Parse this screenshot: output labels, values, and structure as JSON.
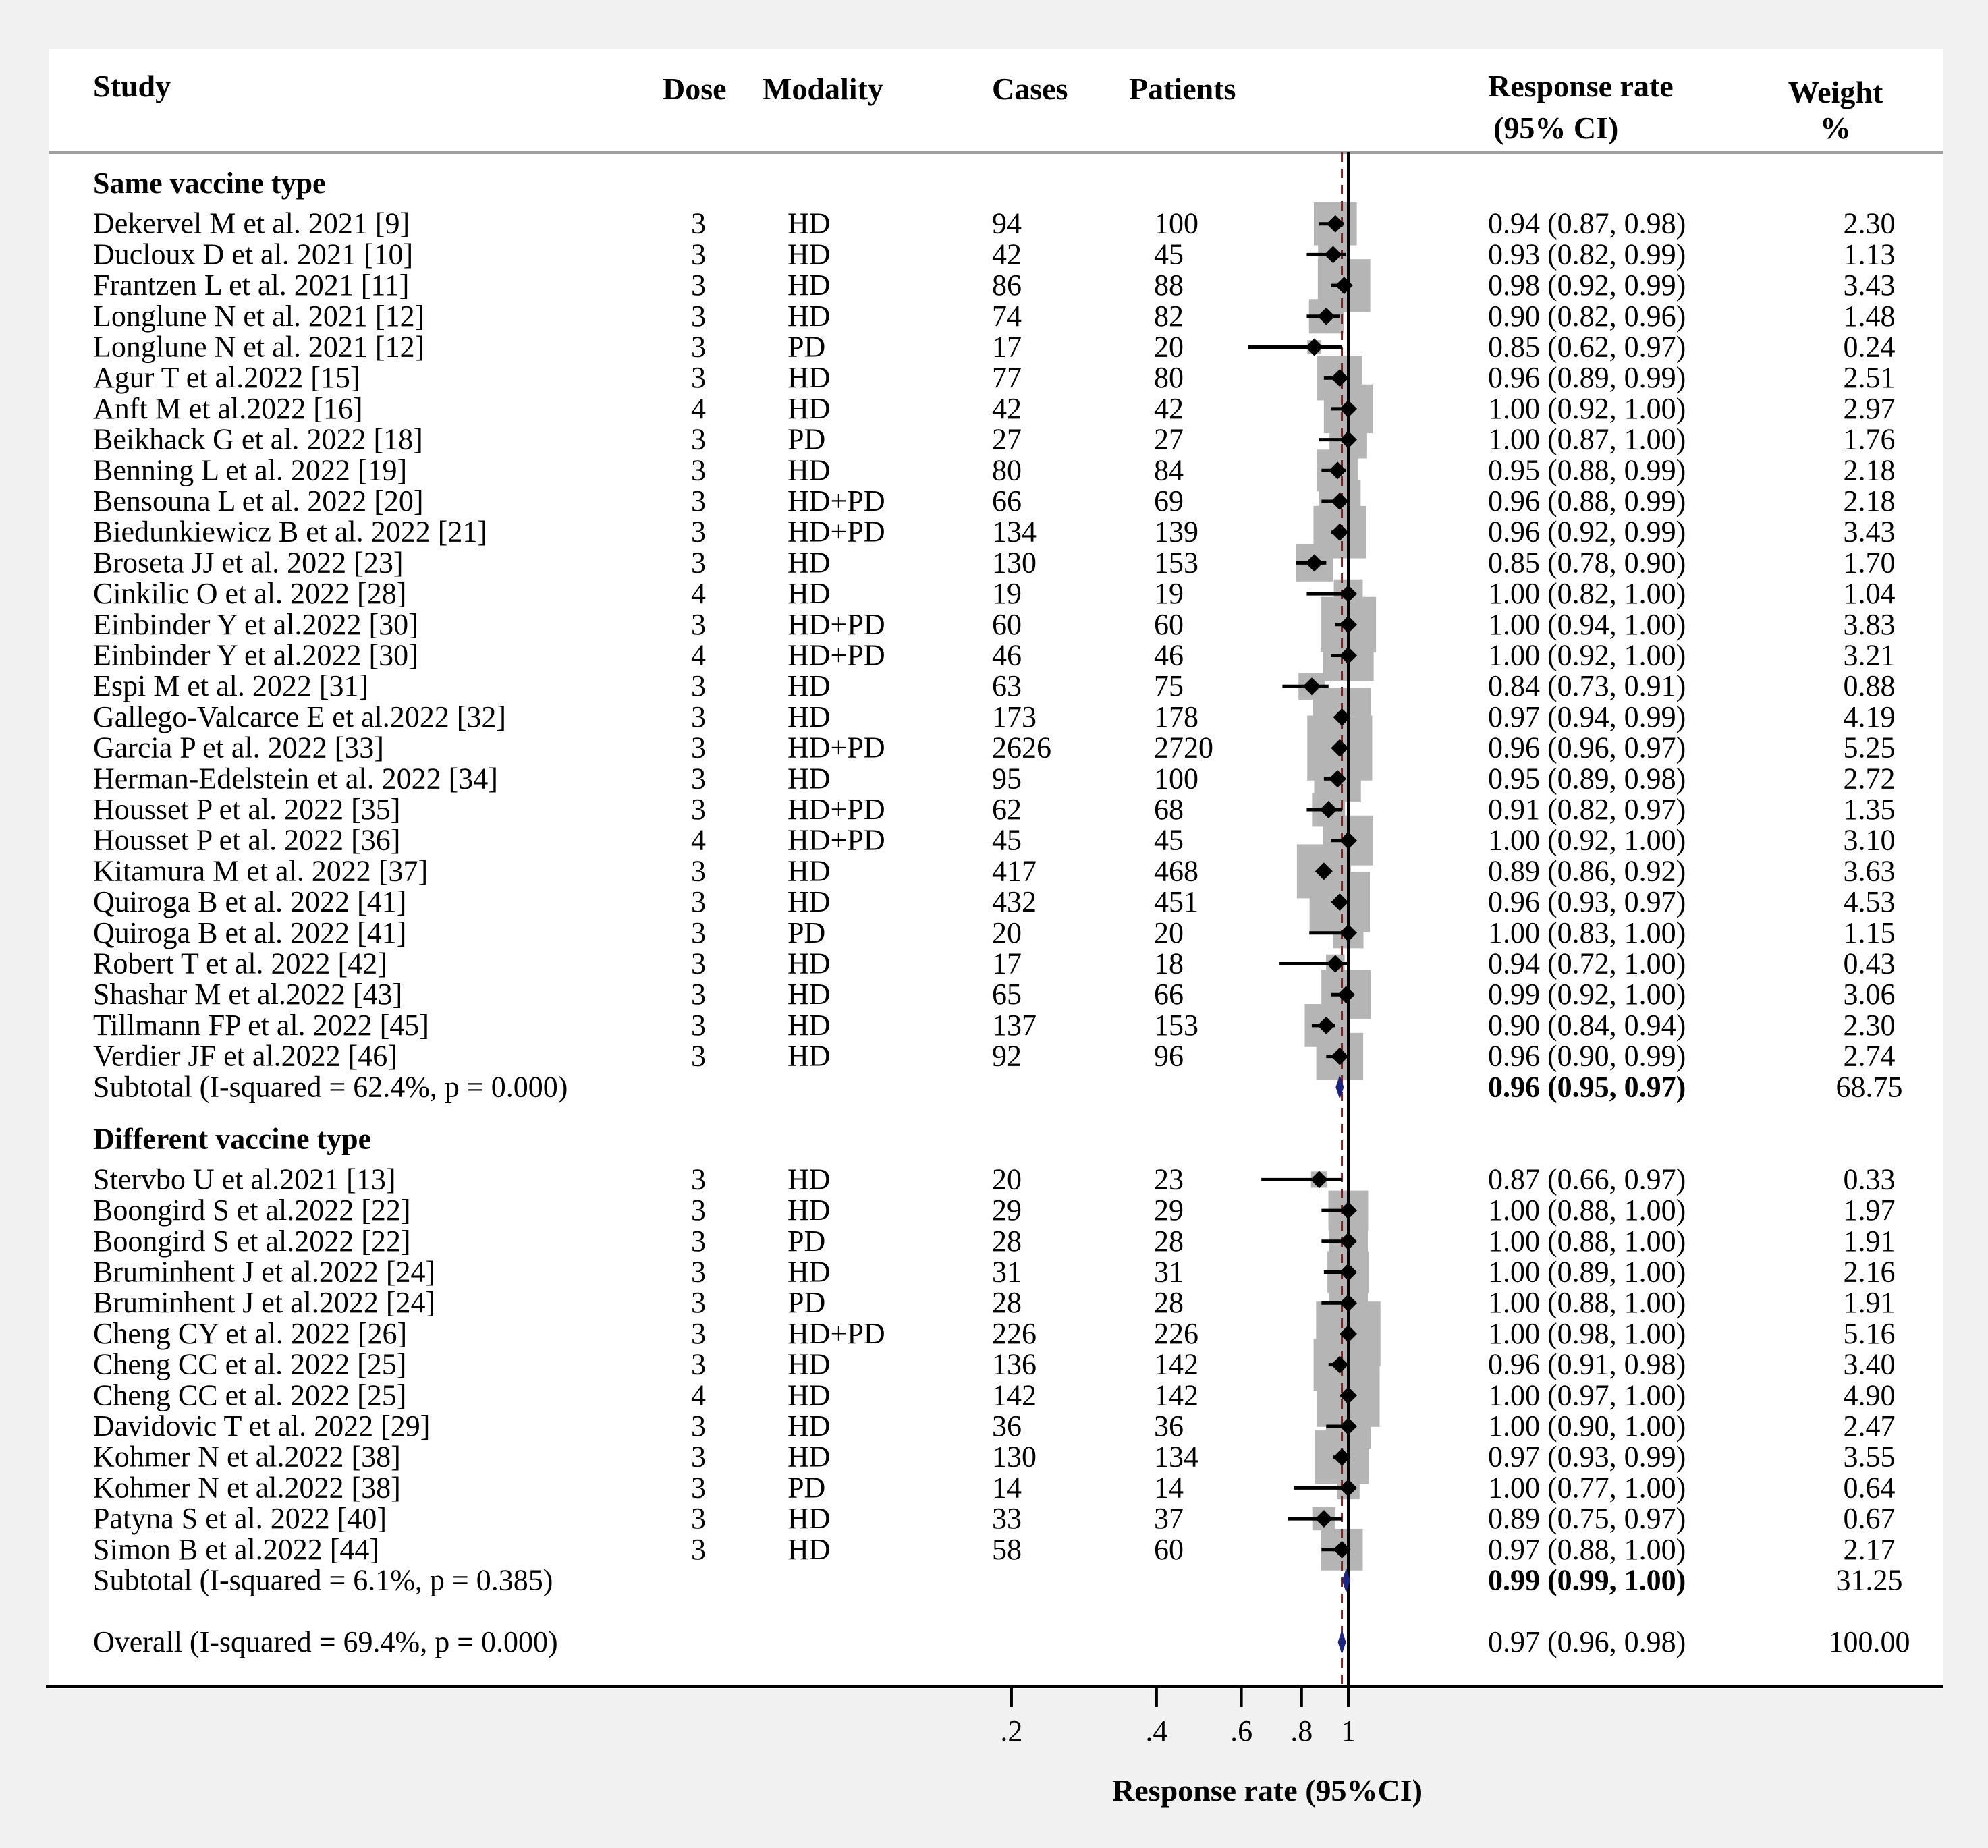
{
  "chart_data": {
    "type": "forest",
    "title": "",
    "xlabel": "Response rate (95%CI)",
    "x_scale": "log",
    "x_ticks": [
      {
        "value": 0.2,
        "label": ".2"
      },
      {
        "value": 0.4,
        "label": ".4"
      },
      {
        "value": 0.6,
        "label": ".6"
      },
      {
        "value": 0.8,
        "label": ".8"
      },
      {
        "value": 1.0,
        "label": "1"
      }
    ],
    "null_line": 1,
    "overall_line": 0.97,
    "headers": {
      "study": "Study",
      "dose": "Dose",
      "modality": "Modality",
      "cases": "Cases",
      "patients": "Patients",
      "rr_line1": "Response rate",
      "rr_line2": "(95% CI)",
      "weight_line1": "Weight",
      "weight_line2": "%"
    },
    "groups": [
      {
        "label": "Same vaccine type",
        "studies": [
          {
            "study": "Dekervel M et al. 2021 [9]",
            "dose": "3",
            "modality": "HD",
            "cases": "94",
            "patients": "100",
            "rr": 0.94,
            "lo": 0.87,
            "hi": 0.98,
            "ci_text": "0.94 (0.87, 0.98)",
            "weight": "2.30"
          },
          {
            "study": "Ducloux D et al. 2021 [10]",
            "dose": "3",
            "modality": "HD",
            "cases": "42",
            "patients": "45",
            "rr": 0.93,
            "lo": 0.82,
            "hi": 0.99,
            "ci_text": "0.93 (0.82, 0.99)",
            "weight": "1.13"
          },
          {
            "study": "Frantzen L et al. 2021 [11]",
            "dose": "3",
            "modality": "HD",
            "cases": "86",
            "patients": "88",
            "rr": 0.98,
            "lo": 0.92,
            "hi": 0.99,
            "ci_text": "0.98 (0.92, 0.99)",
            "weight": "3.43"
          },
          {
            "study": "Longlune N et al. 2021 [12]",
            "dose": "3",
            "modality": "HD",
            "cases": "74",
            "patients": "82",
            "rr": 0.9,
            "lo": 0.82,
            "hi": 0.96,
            "ci_text": "0.90 (0.82, 0.96)",
            "weight": "1.48"
          },
          {
            "study": "Longlune N et al. 2021 [12]",
            "dose": "3",
            "modality": "PD",
            "cases": "17",
            "patients": "20",
            "rr": 0.85,
            "lo": 0.62,
            "hi": 0.97,
            "ci_text": "0.85 (0.62, 0.97)",
            "weight": "0.24"
          },
          {
            "study": "Agur T et al.2022 [15]",
            "dose": "3",
            "modality": "HD",
            "cases": "77",
            "patients": "80",
            "rr": 0.96,
            "lo": 0.89,
            "hi": 0.99,
            "ci_text": "0.96 (0.89, 0.99)",
            "weight": "2.51"
          },
          {
            "study": "Anft M et al.2022 [16]",
            "dose": "4",
            "modality": "HD",
            "cases": "42",
            "patients": "42",
            "rr": 1.0,
            "lo": 0.92,
            "hi": 1.0,
            "ci_text": "1.00 (0.92, 1.00)",
            "weight": "2.97"
          },
          {
            "study": "Beikhack G et al. 2022 [18]",
            "dose": "3",
            "modality": "PD",
            "cases": "27",
            "patients": "27",
            "rr": 1.0,
            "lo": 0.87,
            "hi": 1.0,
            "ci_text": "1.00 (0.87, 1.00)",
            "weight": "1.76"
          },
          {
            "study": "Benning L et al. 2022 [19]",
            "dose": "3",
            "modality": "HD",
            "cases": "80",
            "patients": "84",
            "rr": 0.95,
            "lo": 0.88,
            "hi": 0.99,
            "ci_text": "0.95 (0.88, 0.99)",
            "weight": "2.18"
          },
          {
            "study": "Bensouna L et al. 2022 [20]",
            "dose": "3",
            "modality": "HD+PD",
            "cases": "66",
            "patients": "69",
            "rr": 0.96,
            "lo": 0.88,
            "hi": 0.99,
            "ci_text": "0.96 (0.88, 0.99)",
            "weight": "2.18"
          },
          {
            "study": "Biedunkiewicz B et al. 2022 [21]",
            "dose": "3",
            "modality": "HD+PD",
            "cases": "134",
            "patients": "139",
            "rr": 0.96,
            "lo": 0.92,
            "hi": 0.99,
            "ci_text": "0.96 (0.92, 0.99)",
            "weight": "3.43"
          },
          {
            "study": "Broseta JJ et al. 2022 [23]",
            "dose": "3",
            "modality": "HD",
            "cases": "130",
            "patients": "153",
            "rr": 0.85,
            "lo": 0.78,
            "hi": 0.9,
            "ci_text": "0.85 (0.78, 0.90)",
            "weight": "1.70"
          },
          {
            "study": "Cinkilic O et al. 2022 [28]",
            "dose": "4",
            "modality": "HD",
            "cases": "19",
            "patients": "19",
            "rr": 1.0,
            "lo": 0.82,
            "hi": 1.0,
            "ci_text": "1.00 (0.82, 1.00)",
            "weight": "1.04"
          },
          {
            "study": "Einbinder Y et al.2022 [30]",
            "dose": "3",
            "modality": "HD+PD",
            "cases": "60",
            "patients": "60",
            "rr": 1.0,
            "lo": 0.94,
            "hi": 1.0,
            "ci_text": "1.00 (0.94, 1.00)",
            "weight": "3.83"
          },
          {
            "study": "Einbinder Y et al.2022 [30]",
            "dose": "4",
            "modality": "HD+PD",
            "cases": "46",
            "patients": "46",
            "rr": 1.0,
            "lo": 0.92,
            "hi": 1.0,
            "ci_text": "1.00 (0.92, 1.00)",
            "weight": "3.21"
          },
          {
            "study": "Espi M et al. 2022 [31]",
            "dose": "3",
            "modality": "HD",
            "cases": "63",
            "patients": "75",
            "rr": 0.84,
            "lo": 0.73,
            "hi": 0.91,
            "ci_text": "0.84 (0.73, 0.91)",
            "weight": "0.88"
          },
          {
            "study": "Gallego-Valcarce E et al.2022 [32]",
            "dose": "3",
            "modality": "HD",
            "cases": "173",
            "patients": "178",
            "rr": 0.97,
            "lo": 0.94,
            "hi": 0.99,
            "ci_text": "0.97 (0.94, 0.99)",
            "weight": "4.19"
          },
          {
            "study": "Garcia P et al. 2022 [33]",
            "dose": "3",
            "modality": "HD+PD",
            "cases": "2626",
            "patients": "2720",
            "rr": 0.96,
            "lo": 0.96,
            "hi": 0.97,
            "ci_text": "0.96 (0.96, 0.97)",
            "weight": "5.25"
          },
          {
            "study": "Herman-Edelstein et al. 2022 [34]",
            "dose": "3",
            "modality": "HD",
            "cases": "95",
            "patients": "100",
            "rr": 0.95,
            "lo": 0.89,
            "hi": 0.98,
            "ci_text": "0.95 (0.89, 0.98)",
            "weight": "2.72"
          },
          {
            "study": "Housset P et al. 2022 [35]",
            "dose": "3",
            "modality": "HD+PD",
            "cases": "62",
            "patients": "68",
            "rr": 0.91,
            "lo": 0.82,
            "hi": 0.97,
            "ci_text": "0.91 (0.82, 0.97)",
            "weight": "1.35"
          },
          {
            "study": "Housset P et al. 2022 [36]",
            "dose": "4",
            "modality": "HD+PD",
            "cases": "45",
            "patients": "45",
            "rr": 1.0,
            "lo": 0.92,
            "hi": 1.0,
            "ci_text": "1.00 (0.92, 1.00)",
            "weight": "3.10"
          },
          {
            "study": "Kitamura M et al. 2022 [37]",
            "dose": "3",
            "modality": "HD",
            "cases": "417",
            "patients": "468",
            "rr": 0.89,
            "lo": 0.86,
            "hi": 0.92,
            "ci_text": "0.89 (0.86, 0.92)",
            "weight": "3.63"
          },
          {
            "study": "Quiroga B et al. 2022 [41]",
            "dose": "3",
            "modality": "HD",
            "cases": "432",
            "patients": "451",
            "rr": 0.96,
            "lo": 0.93,
            "hi": 0.97,
            "ci_text": "0.96 (0.93, 0.97)",
            "weight": "4.53"
          },
          {
            "study": "Quiroga B et al. 2022 [41]",
            "dose": "3",
            "modality": "PD",
            "cases": "20",
            "patients": "20",
            "rr": 1.0,
            "lo": 0.83,
            "hi": 1.0,
            "ci_text": "1.00 (0.83, 1.00)",
            "weight": "1.15"
          },
          {
            "study": "Robert T et al. 2022 [42]",
            "dose": "3",
            "modality": "HD",
            "cases": "17",
            "patients": "18",
            "rr": 0.94,
            "lo": 0.72,
            "hi": 1.0,
            "ci_text": "0.94 (0.72, 1.00)",
            "weight": "0.43"
          },
          {
            "study": "Shashar M et al.2022 [43]",
            "dose": "3",
            "modality": "HD",
            "cases": "65",
            "patients": "66",
            "rr": 0.99,
            "lo": 0.92,
            "hi": 1.0,
            "ci_text": "0.99 (0.92, 1.00)",
            "weight": "3.06"
          },
          {
            "study": "Tillmann FP et al. 2022 [45]",
            "dose": "3",
            "modality": "HD",
            "cases": "137",
            "patients": "153",
            "rr": 0.9,
            "lo": 0.84,
            "hi": 0.94,
            "ci_text": "0.90 (0.84, 0.94)",
            "weight": "2.30"
          },
          {
            "study": "Verdier JF et al.2022 [46]",
            "dose": "3",
            "modality": "HD",
            "cases": "92",
            "patients": "96",
            "rr": 0.96,
            "lo": 0.9,
            "hi": 0.99,
            "ci_text": "0.96 (0.90, 0.99)",
            "weight": "2.74"
          }
        ],
        "subtotal": {
          "label": "Subtotal  (I-squared = 62.4%, p = 0.000)",
          "rr": 0.96,
          "lo": 0.95,
          "hi": 0.97,
          "ci_text": "0.96 (0.95, 0.97)",
          "weight": "68.75"
        }
      },
      {
        "label": "Different vaccine type",
        "studies": [
          {
            "study": "Stervbo U et al.2021 [13]",
            "dose": "3",
            "modality": "HD",
            "cases": "20",
            "patients": "23",
            "rr": 0.87,
            "lo": 0.66,
            "hi": 0.97,
            "ci_text": "0.87 (0.66, 0.97)",
            "weight": "0.33"
          },
          {
            "study": "Boongird S et al.2022 [22]",
            "dose": "3",
            "modality": "HD",
            "cases": "29",
            "patients": "29",
            "rr": 1.0,
            "lo": 0.88,
            "hi": 1.0,
            "ci_text": "1.00 (0.88, 1.00)",
            "weight": "1.97"
          },
          {
            "study": "Boongird S et al.2022 [22]",
            "dose": "3",
            "modality": "PD",
            "cases": "28",
            "patients": "28",
            "rr": 1.0,
            "lo": 0.88,
            "hi": 1.0,
            "ci_text": "1.00 (0.88, 1.00)",
            "weight": "1.91"
          },
          {
            "study": "Bruminhent J et al.2022 [24]",
            "dose": "3",
            "modality": "HD",
            "cases": "31",
            "patients": "31",
            "rr": 1.0,
            "lo": 0.89,
            "hi": 1.0,
            "ci_text": "1.00 (0.89, 1.00)",
            "weight": "2.16"
          },
          {
            "study": "Bruminhent J et al.2022 [24]",
            "dose": "3",
            "modality": "PD",
            "cases": "28",
            "patients": "28",
            "rr": 1.0,
            "lo": 0.88,
            "hi": 1.0,
            "ci_text": "1.00 (0.88, 1.00)",
            "weight": "1.91"
          },
          {
            "study": "Cheng CY et al. 2022 [26]",
            "dose": "3",
            "modality": "HD+PD",
            "cases": "226",
            "patients": "226",
            "rr": 1.0,
            "lo": 0.98,
            "hi": 1.0,
            "ci_text": "1.00 (0.98, 1.00)",
            "weight": "5.16"
          },
          {
            "study": "Cheng CC et al. 2022 [25]",
            "dose": "3",
            "modality": "HD",
            "cases": "136",
            "patients": "142",
            "rr": 0.96,
            "lo": 0.91,
            "hi": 0.98,
            "ci_text": "0.96 (0.91, 0.98)",
            "weight": "3.40"
          },
          {
            "study": "Cheng CC et al. 2022 [25]",
            "dose": "4",
            "modality": "HD",
            "cases": "142",
            "patients": "142",
            "rr": 1.0,
            "lo": 0.97,
            "hi": 1.0,
            "ci_text": "1.00 (0.97, 1.00)",
            "weight": "4.90"
          },
          {
            "study": "Davidovic T et al. 2022 [29]",
            "dose": "3",
            "modality": "HD",
            "cases": "36",
            "patients": "36",
            "rr": 1.0,
            "lo": 0.9,
            "hi": 1.0,
            "ci_text": "1.00 (0.90, 1.00)",
            "weight": "2.47"
          },
          {
            "study": "Kohmer N et al.2022 [38]",
            "dose": "3",
            "modality": "HD",
            "cases": "130",
            "patients": "134",
            "rr": 0.97,
            "lo": 0.93,
            "hi": 0.99,
            "ci_text": "0.97 (0.93, 0.99)",
            "weight": "3.55"
          },
          {
            "study": "Kohmer N et al.2022 [38]",
            "dose": "3",
            "modality": "PD",
            "cases": "14",
            "patients": "14",
            "rr": 1.0,
            "lo": 0.77,
            "hi": 1.0,
            "ci_text": "1.00 (0.77, 1.00)",
            "weight": "0.64"
          },
          {
            "study": "Patyna S  et al. 2022 [40]",
            "dose": "3",
            "modality": "HD",
            "cases": "33",
            "patients": "37",
            "rr": 0.89,
            "lo": 0.75,
            "hi": 0.97,
            "ci_text": "0.89 (0.75, 0.97)",
            "weight": "0.67"
          },
          {
            "study": "Simon B et al.2022 [44]",
            "dose": "3",
            "modality": "HD",
            "cases": "58",
            "patients": "60",
            "rr": 0.97,
            "lo": 0.88,
            "hi": 1.0,
            "ci_text": "0.97 (0.88, 1.00)",
            "weight": "2.17"
          }
        ],
        "subtotal": {
          "label": "Subtotal  (I-squared = 6.1%, p = 0.385)",
          "rr": 0.99,
          "lo": 0.99,
          "hi": 1.0,
          "ci_text": "0.99 (0.99, 1.00)",
          "weight": "31.25"
        }
      }
    ],
    "overall": {
      "label": "Overall  (I-squared = 69.4%, p = 0.000)",
      "rr": 0.97,
      "lo": 0.96,
      "hi": 0.98,
      "ci_text": "0.97 (0.96, 0.98)",
      "weight": "100.00"
    },
    "colors": {
      "box": "#b5b5b5",
      "point": "#000000",
      "diamond": "#1a237e",
      "overall_line": "#8b1a1a",
      "panel": "#ffffff",
      "background": "#f1f1f1"
    }
  }
}
